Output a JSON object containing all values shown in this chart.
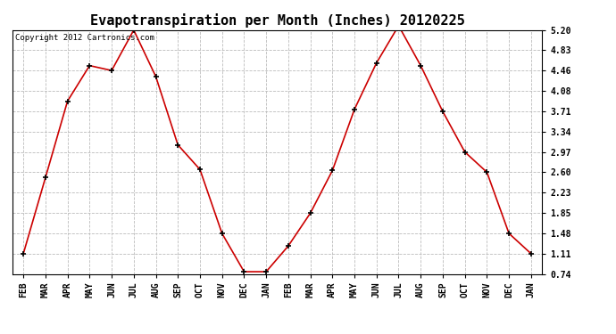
{
  "title": "Evapotranspiration per Month (Inches) 20120225",
  "copyright_text": "Copyright 2012 Cartronics.com",
  "months": [
    "FEB",
    "MAR",
    "APR",
    "MAY",
    "JUN",
    "JUL",
    "AUG",
    "SEP",
    "OCT",
    "NOV",
    "DEC",
    "JAN",
    "FEB",
    "MAR",
    "APR",
    "MAY",
    "JUN",
    "JUL",
    "AUG",
    "SEP",
    "OCT",
    "NOV",
    "DEC",
    "JAN"
  ],
  "values": [
    1.11,
    2.5,
    3.9,
    4.55,
    4.46,
    5.2,
    4.35,
    3.1,
    2.65,
    1.48,
    0.78,
    0.78,
    1.25,
    1.85,
    2.63,
    3.75,
    4.6,
    5.28,
    4.55,
    3.71,
    2.97,
    2.6,
    1.48,
    1.11
  ],
  "yticks": [
    0.74,
    1.11,
    1.48,
    1.85,
    2.23,
    2.6,
    2.97,
    3.34,
    3.71,
    4.08,
    4.46,
    4.83,
    5.2
  ],
  "line_color": "#cc0000",
  "marker_color": "#000000",
  "bg_color": "#ffffff",
  "grid_color": "#bbbbbb",
  "title_fontsize": 11,
  "axis_fontsize": 7,
  "copyright_fontsize": 6.5,
  "ylim": [
    0.74,
    5.2
  ]
}
